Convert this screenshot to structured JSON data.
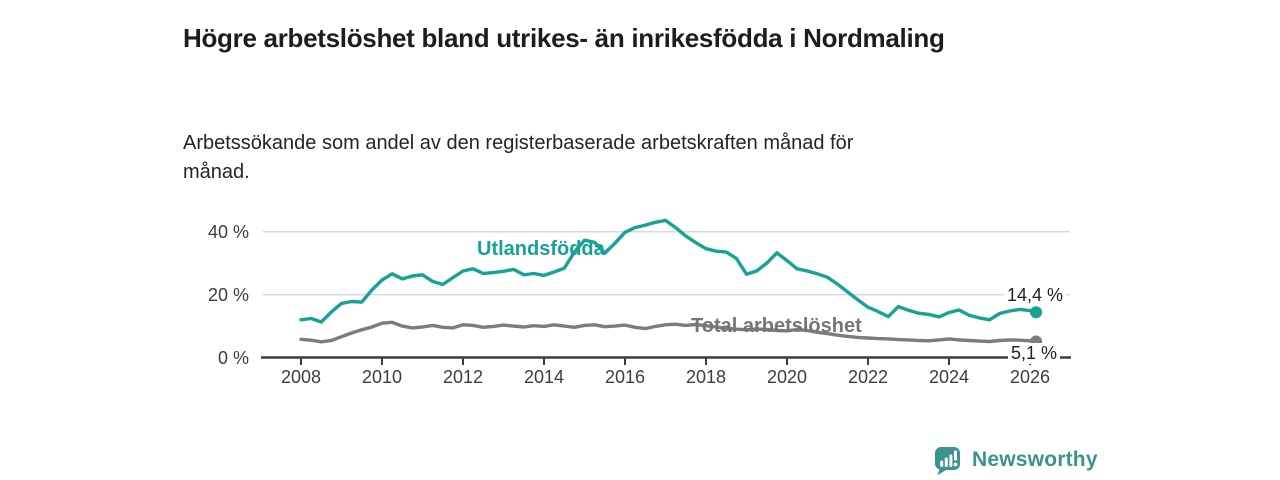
{
  "chart_data": {
    "type": "line",
    "title": "Högre arbetslöshet bland utrikes- än inrikesfödda i Nordmaling",
    "subtitle": "Arbetssökande som andel av den registerbaserade arbetskraften månad för månad.",
    "x_unit": "year",
    "y_unit": "percent",
    "xlim": [
      2007.6,
      2026.9
    ],
    "ylim": [
      0,
      46
    ],
    "grid": "horizontal",
    "legend": "inline-labels",
    "x_ticks": [
      2008,
      2010,
      2012,
      2014,
      2016,
      2018,
      2020,
      2022,
      2024,
      2026
    ],
    "y_ticks": [
      {
        "value": 0,
        "label": "0 %"
      },
      {
        "value": 20,
        "label": "20 %"
      },
      {
        "value": 40,
        "label": "40 %"
      }
    ],
    "series": [
      {
        "id": "utlandsfodda",
        "name": "Utlandsfödda",
        "color": "#17a295",
        "end_label": "14,4 %",
        "end_value": 14.4,
        "x": [
          2008.0,
          2008.25,
          2008.5,
          2008.75,
          2009.0,
          2009.25,
          2009.5,
          2009.75,
          2010.0,
          2010.25,
          2010.5,
          2010.75,
          2011.0,
          2011.25,
          2011.5,
          2011.75,
          2012.0,
          2012.25,
          2012.5,
          2012.75,
          2013.0,
          2013.25,
          2013.5,
          2013.75,
          2014.0,
          2014.25,
          2014.5,
          2014.75,
          2015.0,
          2015.25,
          2015.5,
          2015.75,
          2016.0,
          2016.25,
          2016.5,
          2016.75,
          2017.0,
          2017.25,
          2017.5,
          2017.75,
          2018.0,
          2018.25,
          2018.5,
          2018.75,
          2019.0,
          2019.25,
          2019.5,
          2019.75,
          2020.0,
          2020.25,
          2020.5,
          2020.75,
          2021.0,
          2021.25,
          2021.5,
          2021.75,
          2022.0,
          2022.25,
          2022.5,
          2022.75,
          2023.0,
          2023.25,
          2023.5,
          2023.75,
          2024.0,
          2024.25,
          2024.5,
          2024.75,
          2025.0,
          2025.25,
          2025.5,
          2025.75,
          2026.0,
          2026.15
        ],
        "values": [
          12.0,
          12.4,
          11.3,
          14.5,
          17.2,
          17.8,
          17.6,
          21.5,
          24.6,
          26.6,
          25.0,
          25.9,
          26.3,
          24.2,
          23.2,
          25.4,
          27.5,
          28.2,
          26.7,
          27.0,
          27.4,
          28.0,
          26.3,
          26.7,
          26.1,
          27.2,
          28.4,
          33.5,
          37.3,
          36.6,
          33.2,
          36.3,
          39.8,
          41.3,
          42.1,
          43.0,
          43.6,
          41.3,
          38.6,
          36.5,
          34.6,
          33.8,
          33.5,
          31.5,
          26.5,
          27.5,
          30.0,
          33.3,
          30.8,
          28.2,
          27.5,
          26.6,
          25.5,
          23.3,
          20.8,
          18.3,
          16.0,
          14.6,
          13.0,
          16.2,
          15.0,
          14.1,
          13.7,
          12.9,
          14.3,
          15.1,
          13.4,
          12.6,
          12.0,
          14.0,
          14.8,
          15.3,
          14.9,
          14.4
        ]
      },
      {
        "id": "total-arbetsloshet",
        "name": "Total arbetslöshet",
        "color": "#7c7c7c",
        "end_label": "5,1 %",
        "end_value": 5.1,
        "x": [
          2008.0,
          2008.25,
          2008.5,
          2008.75,
          2009.0,
          2009.25,
          2009.5,
          2009.75,
          2010.0,
          2010.25,
          2010.5,
          2010.75,
          2011.0,
          2011.25,
          2011.5,
          2011.75,
          2012.0,
          2012.25,
          2012.5,
          2012.75,
          2013.0,
          2013.25,
          2013.5,
          2013.75,
          2014.0,
          2014.25,
          2014.5,
          2014.75,
          2015.0,
          2015.25,
          2015.5,
          2015.75,
          2016.0,
          2016.25,
          2016.5,
          2016.75,
          2017.0,
          2017.25,
          2017.5,
          2017.75,
          2018.0,
          2018.25,
          2018.5,
          2018.75,
          2019.0,
          2019.25,
          2019.5,
          2019.75,
          2020.0,
          2020.25,
          2020.5,
          2020.75,
          2021.0,
          2021.25,
          2021.5,
          2021.75,
          2022.0,
          2022.25,
          2022.5,
          2022.75,
          2023.0,
          2023.25,
          2023.5,
          2023.75,
          2024.0,
          2024.25,
          2024.5,
          2024.75,
          2025.0,
          2025.25,
          2025.5,
          2025.75,
          2026.0,
          2026.15
        ],
        "values": [
          5.8,
          5.5,
          5.0,
          5.4,
          6.6,
          7.8,
          8.8,
          9.7,
          10.9,
          11.2,
          10.0,
          9.4,
          9.7,
          10.2,
          9.6,
          9.4,
          10.4,
          10.2,
          9.6,
          9.9,
          10.3,
          10.0,
          9.7,
          10.1,
          9.9,
          10.4,
          10.0,
          9.6,
          10.2,
          10.4,
          9.8,
          10.0,
          10.3,
          9.6,
          9.2,
          9.9,
          10.4,
          10.6,
          10.2,
          10.5,
          10.1,
          9.7,
          9.3,
          9.0,
          8.8,
          9.1,
          8.9,
          8.6,
          8.5,
          8.9,
          8.6,
          8.0,
          7.6,
          7.1,
          6.7,
          6.4,
          6.2,
          6.0,
          5.9,
          5.7,
          5.6,
          5.4,
          5.3,
          5.6,
          5.9,
          5.6,
          5.4,
          5.2,
          5.1,
          5.4,
          5.6,
          5.5,
          5.3,
          5.1
        ]
      }
    ]
  },
  "branding": {
    "logo_text": "Newsworthy",
    "logo_color": "#3b938c",
    "icon": "bar-chart-bubble-icon"
  }
}
